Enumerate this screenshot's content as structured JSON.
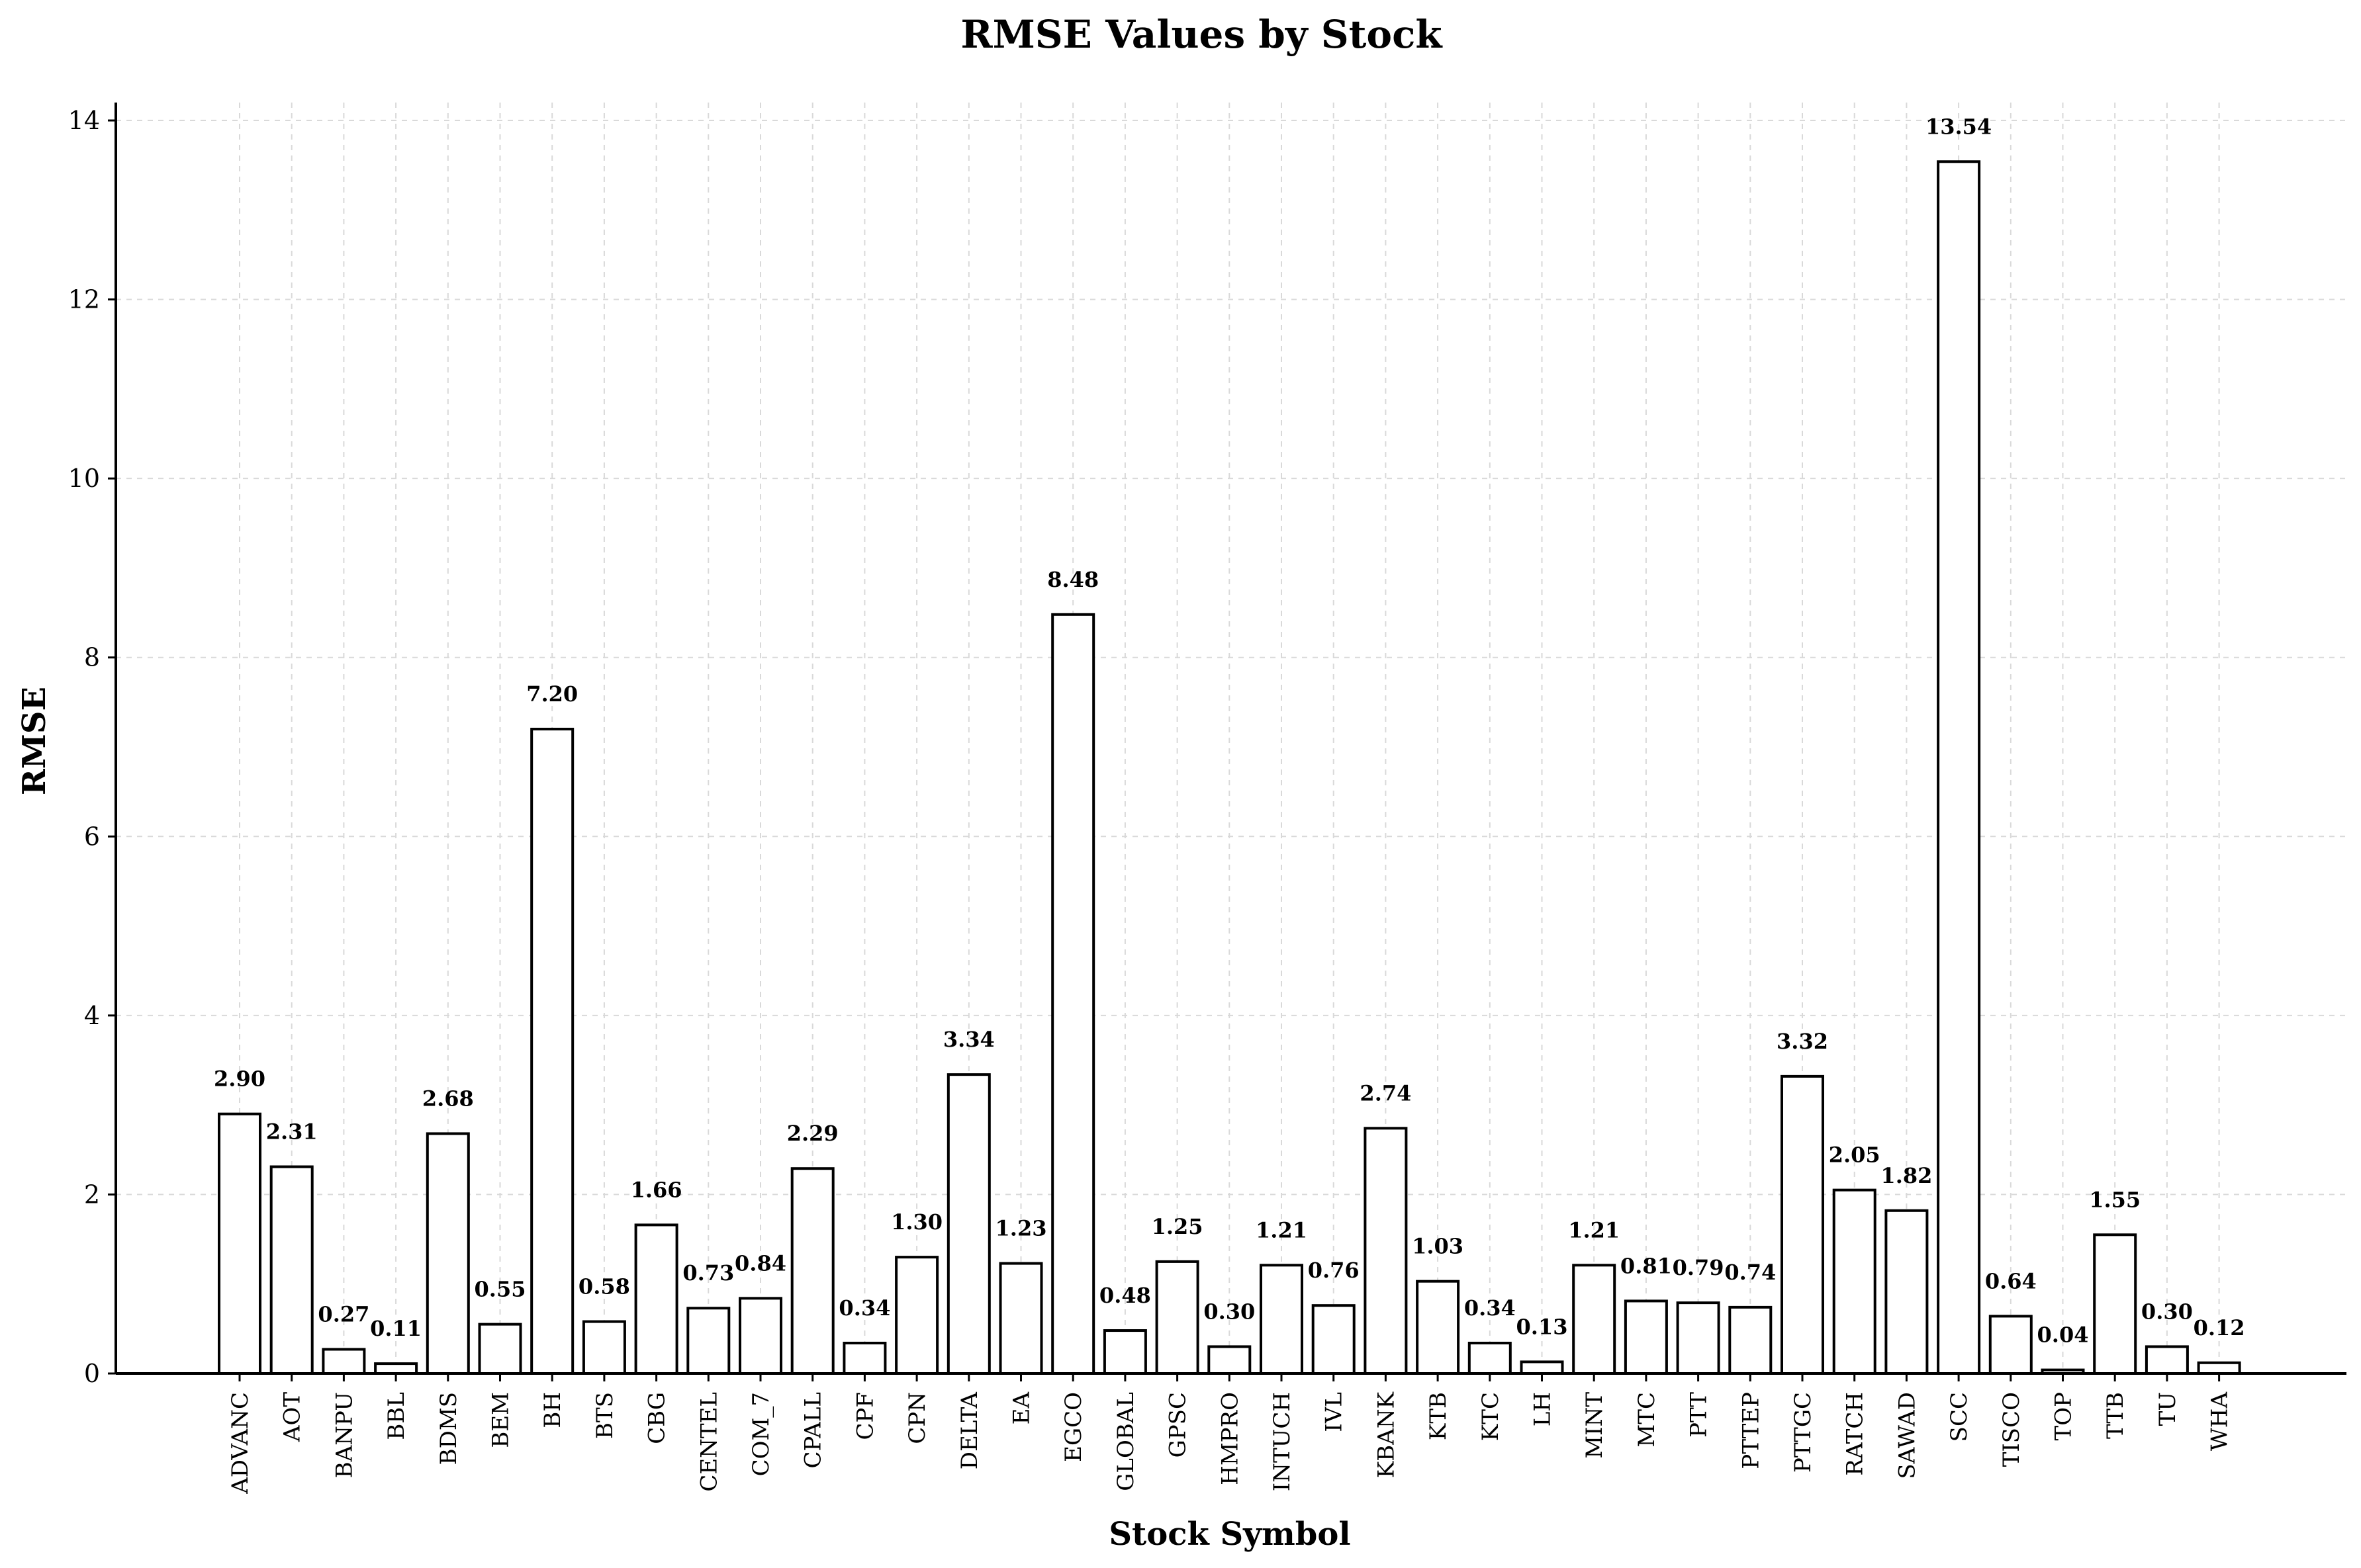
{
  "chart_data": {
    "type": "bar",
    "title": "RMSE Values by Stock",
    "xlabel": "Stock Symbol",
    "ylabel": "RMSE",
    "ylim": [
      0,
      14.2
    ],
    "yticks": [
      0,
      2,
      4,
      6,
      8,
      10,
      12,
      14
    ],
    "grid": true,
    "categories": [
      "ADVANC",
      "AOT",
      "BANPU",
      "BBL",
      "BDMS",
      "BEM",
      "BH",
      "BTS",
      "CBG",
      "CENTEL",
      "COM_7",
      "CPALL",
      "CPF",
      "CPN",
      "DELTA",
      "EA",
      "EGCO",
      "GLOBAL",
      "GPSC",
      "HMPRO",
      "INTUCH",
      "IVL",
      "KBANK",
      "KTB",
      "KTC",
      "LH",
      "MINT",
      "MTC",
      "PTT",
      "PTTEP",
      "PTTGC",
      "RATCH",
      "SAWAD",
      "SCC",
      "TISCO",
      "TOP",
      "TTB",
      "TU",
      "WHA"
    ],
    "values": [
      2.9,
      2.31,
      0.27,
      0.11,
      2.68,
      0.55,
      7.2,
      0.58,
      1.66,
      0.73,
      0.84,
      2.29,
      0.34,
      1.3,
      3.34,
      1.23,
      8.48,
      0.48,
      1.25,
      0.3,
      1.21,
      0.76,
      2.74,
      1.03,
      0.34,
      0.13,
      1.21,
      0.81,
      0.79,
      0.74,
      3.32,
      2.05,
      1.82,
      13.54,
      0.64,
      0.04,
      1.55,
      0.3,
      0.12
    ],
    "value_labels": [
      "2.90",
      "2.31",
      "0.27",
      "0.11",
      "2.68",
      "0.55",
      "7.20",
      "0.58",
      "1.66",
      "0.73",
      "0.84",
      "2.29",
      "0.34",
      "1.30",
      "3.34",
      "1.23",
      "8.48",
      "0.48",
      "1.25",
      "0.30",
      "1.21",
      "0.76",
      "2.74",
      "1.03",
      "0.34",
      "0.13",
      "1.21",
      "0.81",
      "0.79",
      "0.74",
      "3.32",
      "2.05",
      "1.82",
      "13.54",
      "0.64",
      "0.04",
      "1.55",
      "0.30",
      "0.12"
    ],
    "colors": {
      "bar_fill": "#ffffff",
      "bar_edge": "#000000",
      "grid": "#d9d9d9"
    }
  }
}
